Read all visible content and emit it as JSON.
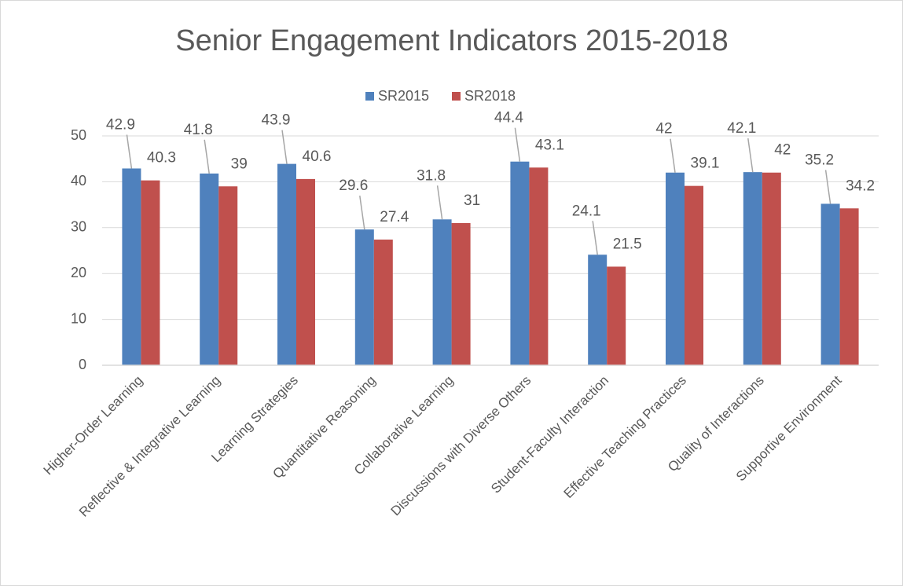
{
  "chart_data": {
    "type": "bar",
    "title": "Senior Engagement Indicators 2015-2018",
    "categories": [
      "Higher-Order Learning",
      "Reflective & Integrative Learning",
      "Learning Strategies",
      "Quantitative Reasoning",
      "Collaborative Learning",
      "Discussions with Diverse Others",
      "Student-Faculty Interaction",
      "Effective Teaching Practices",
      "Quality of Interactions",
      "Supportive Environment"
    ],
    "series": [
      {
        "name": "SR2015",
        "color": "#4f81bd",
        "values": [
          42.9,
          41.8,
          43.9,
          29.6,
          31.8,
          44.4,
          24.1,
          42,
          42.1,
          35.2
        ]
      },
      {
        "name": "SR2018",
        "color": "#c0504d",
        "values": [
          40.3,
          39,
          40.6,
          27.4,
          31,
          43.1,
          21.5,
          39.1,
          42,
          34.2
        ]
      }
    ],
    "ylim": [
      0,
      50
    ],
    "yticks": [
      0,
      10,
      20,
      30,
      40,
      50
    ],
    "grid": true,
    "legend": "top"
  }
}
